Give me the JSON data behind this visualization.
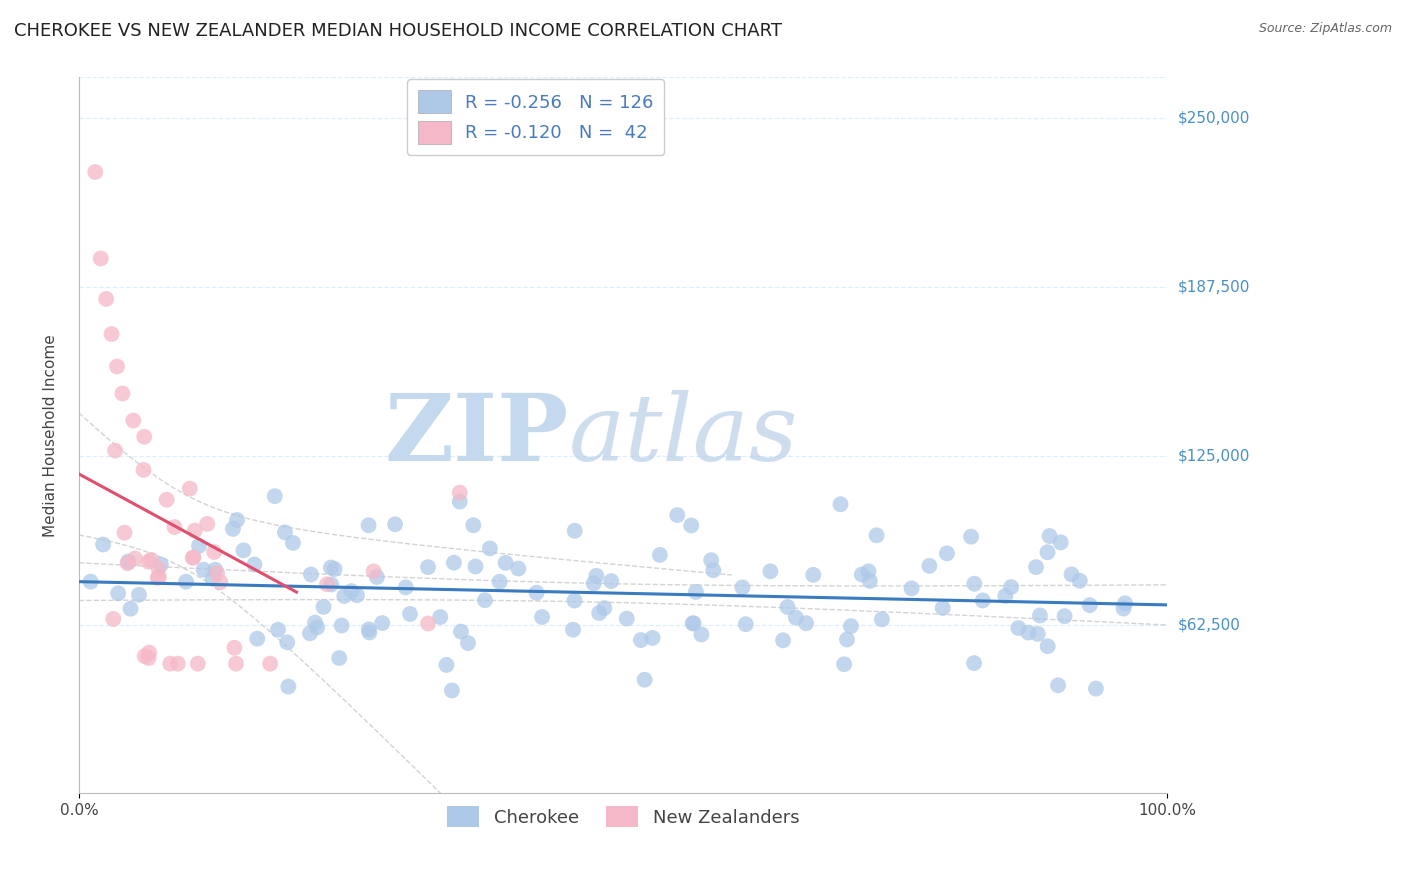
{
  "title": "CHEROKEE VS NEW ZEALANDER MEDIAN HOUSEHOLD INCOME CORRELATION CHART",
  "source": "Source: ZipAtlas.com",
  "ylabel": "Median Household Income",
  "watermark_zip": "ZIP",
  "watermark_atlas": "atlas",
  "xlim": [
    0.0,
    1.0
  ],
  "ylim": [
    0,
    265000
  ],
  "yticks": [
    62500,
    125000,
    187500,
    250000
  ],
  "ytick_labels": [
    "$62,500",
    "$125,000",
    "$187,500",
    "$250,000"
  ],
  "xtick_labels": [
    "0.0%",
    "100.0%"
  ],
  "cherokee_R": -0.256,
  "cherokee_N": 126,
  "newzealander_R": -0.12,
  "newzealander_N": 42,
  "cherokee_color": "#aec9e8",
  "cherokee_line_color": "#3a7abf",
  "newzealander_color": "#f5b8c8",
  "newzealander_line_color": "#e0506e",
  "ci_line_color": "#c8c8c8",
  "background_color": "#ffffff",
  "grid_color": "#ddeeff",
  "title_fontsize": 13,
  "axis_label_fontsize": 11,
  "tick_fontsize": 11,
  "legend_fontsize": 13,
  "right_tick_color": "#4a90c4",
  "legend_text_color": "#4a7abf",
  "seed": 7
}
